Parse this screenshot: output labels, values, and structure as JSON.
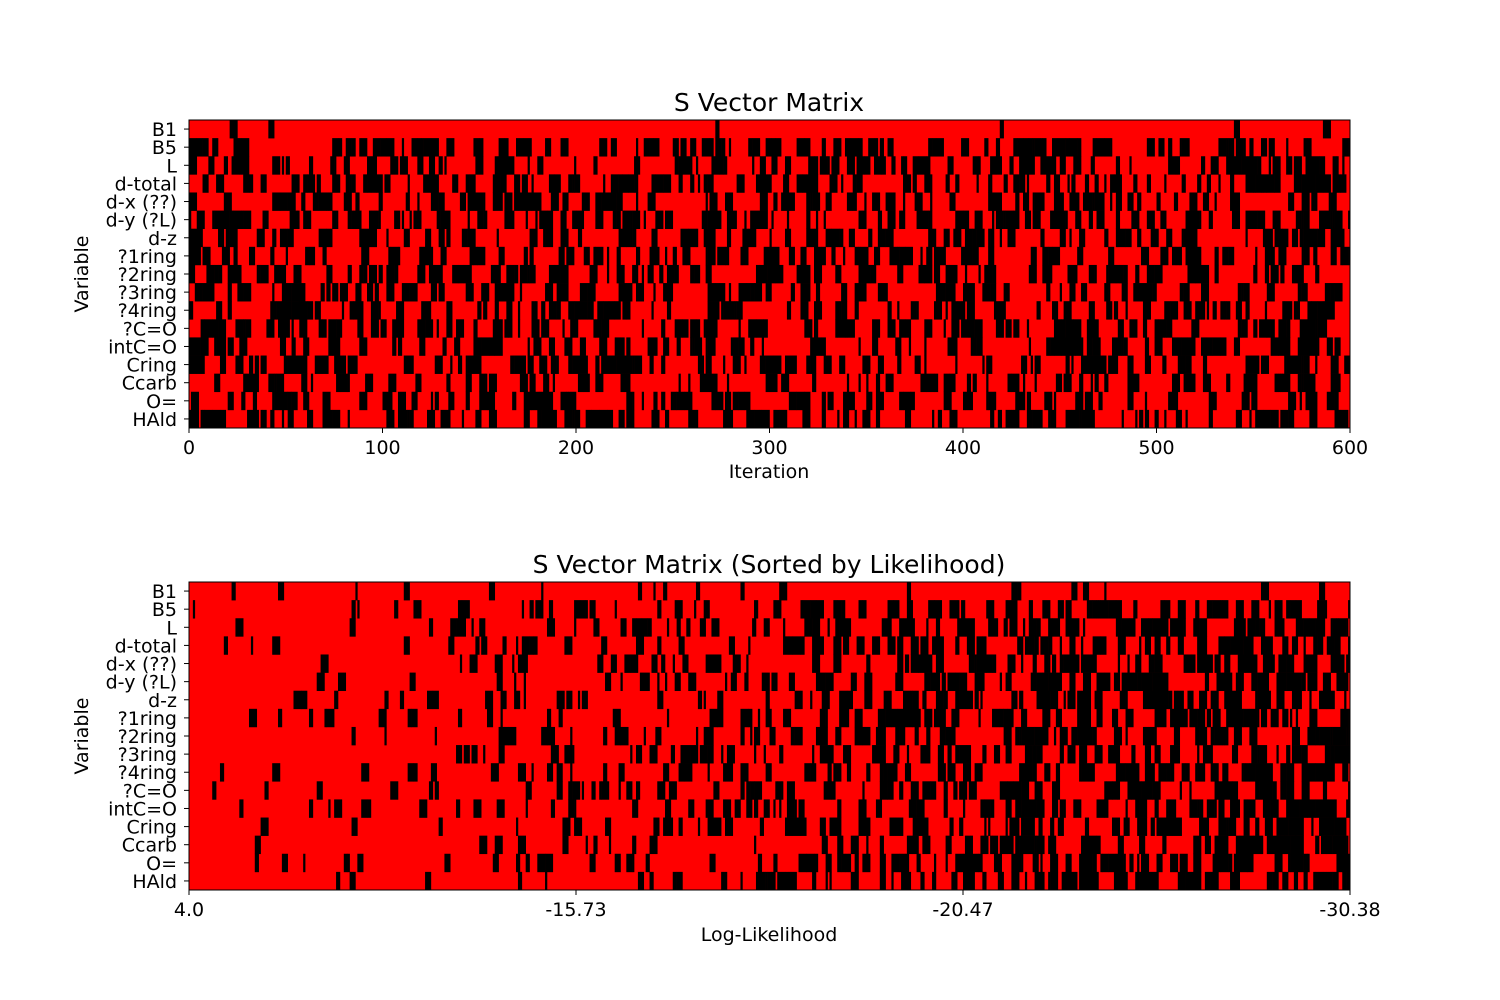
{
  "chart_data": [
    {
      "type": "heatmap",
      "title": "S Vector Matrix",
      "xlabel": "Iteration",
      "ylabel": "Variable",
      "y_categories": [
        "B1",
        "B5",
        "L",
        "d-total",
        "d-x (??)",
        "d-y (?L)",
        "d-z",
        "?1ring",
        "?2ring",
        "?3ring",
        "?4ring",
        "?C=O",
        "intC=O",
        "Cring",
        "Ccarb",
        "O=",
        "HAld"
      ],
      "x_ticks": [
        "0",
        "100",
        "200",
        "300",
        "400",
        "500",
        "600"
      ],
      "xlim": [
        0,
        600
      ],
      "n_columns": 600,
      "value_colors": {
        "1": "#ff0000",
        "0": "#000000"
      },
      "row_active_fraction": [
        0.94,
        0.6,
        0.55,
        0.55,
        0.58,
        0.52,
        0.55,
        0.6,
        0.58,
        0.58,
        0.6,
        0.56,
        0.55,
        0.58,
        0.6,
        0.6,
        0.58
      ],
      "grid": false
    },
    {
      "type": "heatmap",
      "title": "S Vector Matrix (Sorted by Likelihood)",
      "xlabel": "Log-Likelihood",
      "ylabel": "Variable",
      "y_categories": [
        "B1",
        "B5",
        "L",
        "d-total",
        "d-x (??)",
        "d-y (?L)",
        "d-z",
        "?1ring",
        "?2ring",
        "?3ring",
        "?4ring",
        "?C=O",
        "intC=O",
        "Cring",
        "Ccarb",
        "O=",
        "HAld"
      ],
      "x_ticks": [
        "4.0",
        "-15.73",
        "-20.47",
        "-30.38"
      ],
      "n_columns": 600,
      "value_colors": {
        "1": "#ff0000",
        "0": "#000000"
      },
      "active_fraction_start": 0.98,
      "active_fraction_end": 0.35,
      "grid": false
    }
  ]
}
